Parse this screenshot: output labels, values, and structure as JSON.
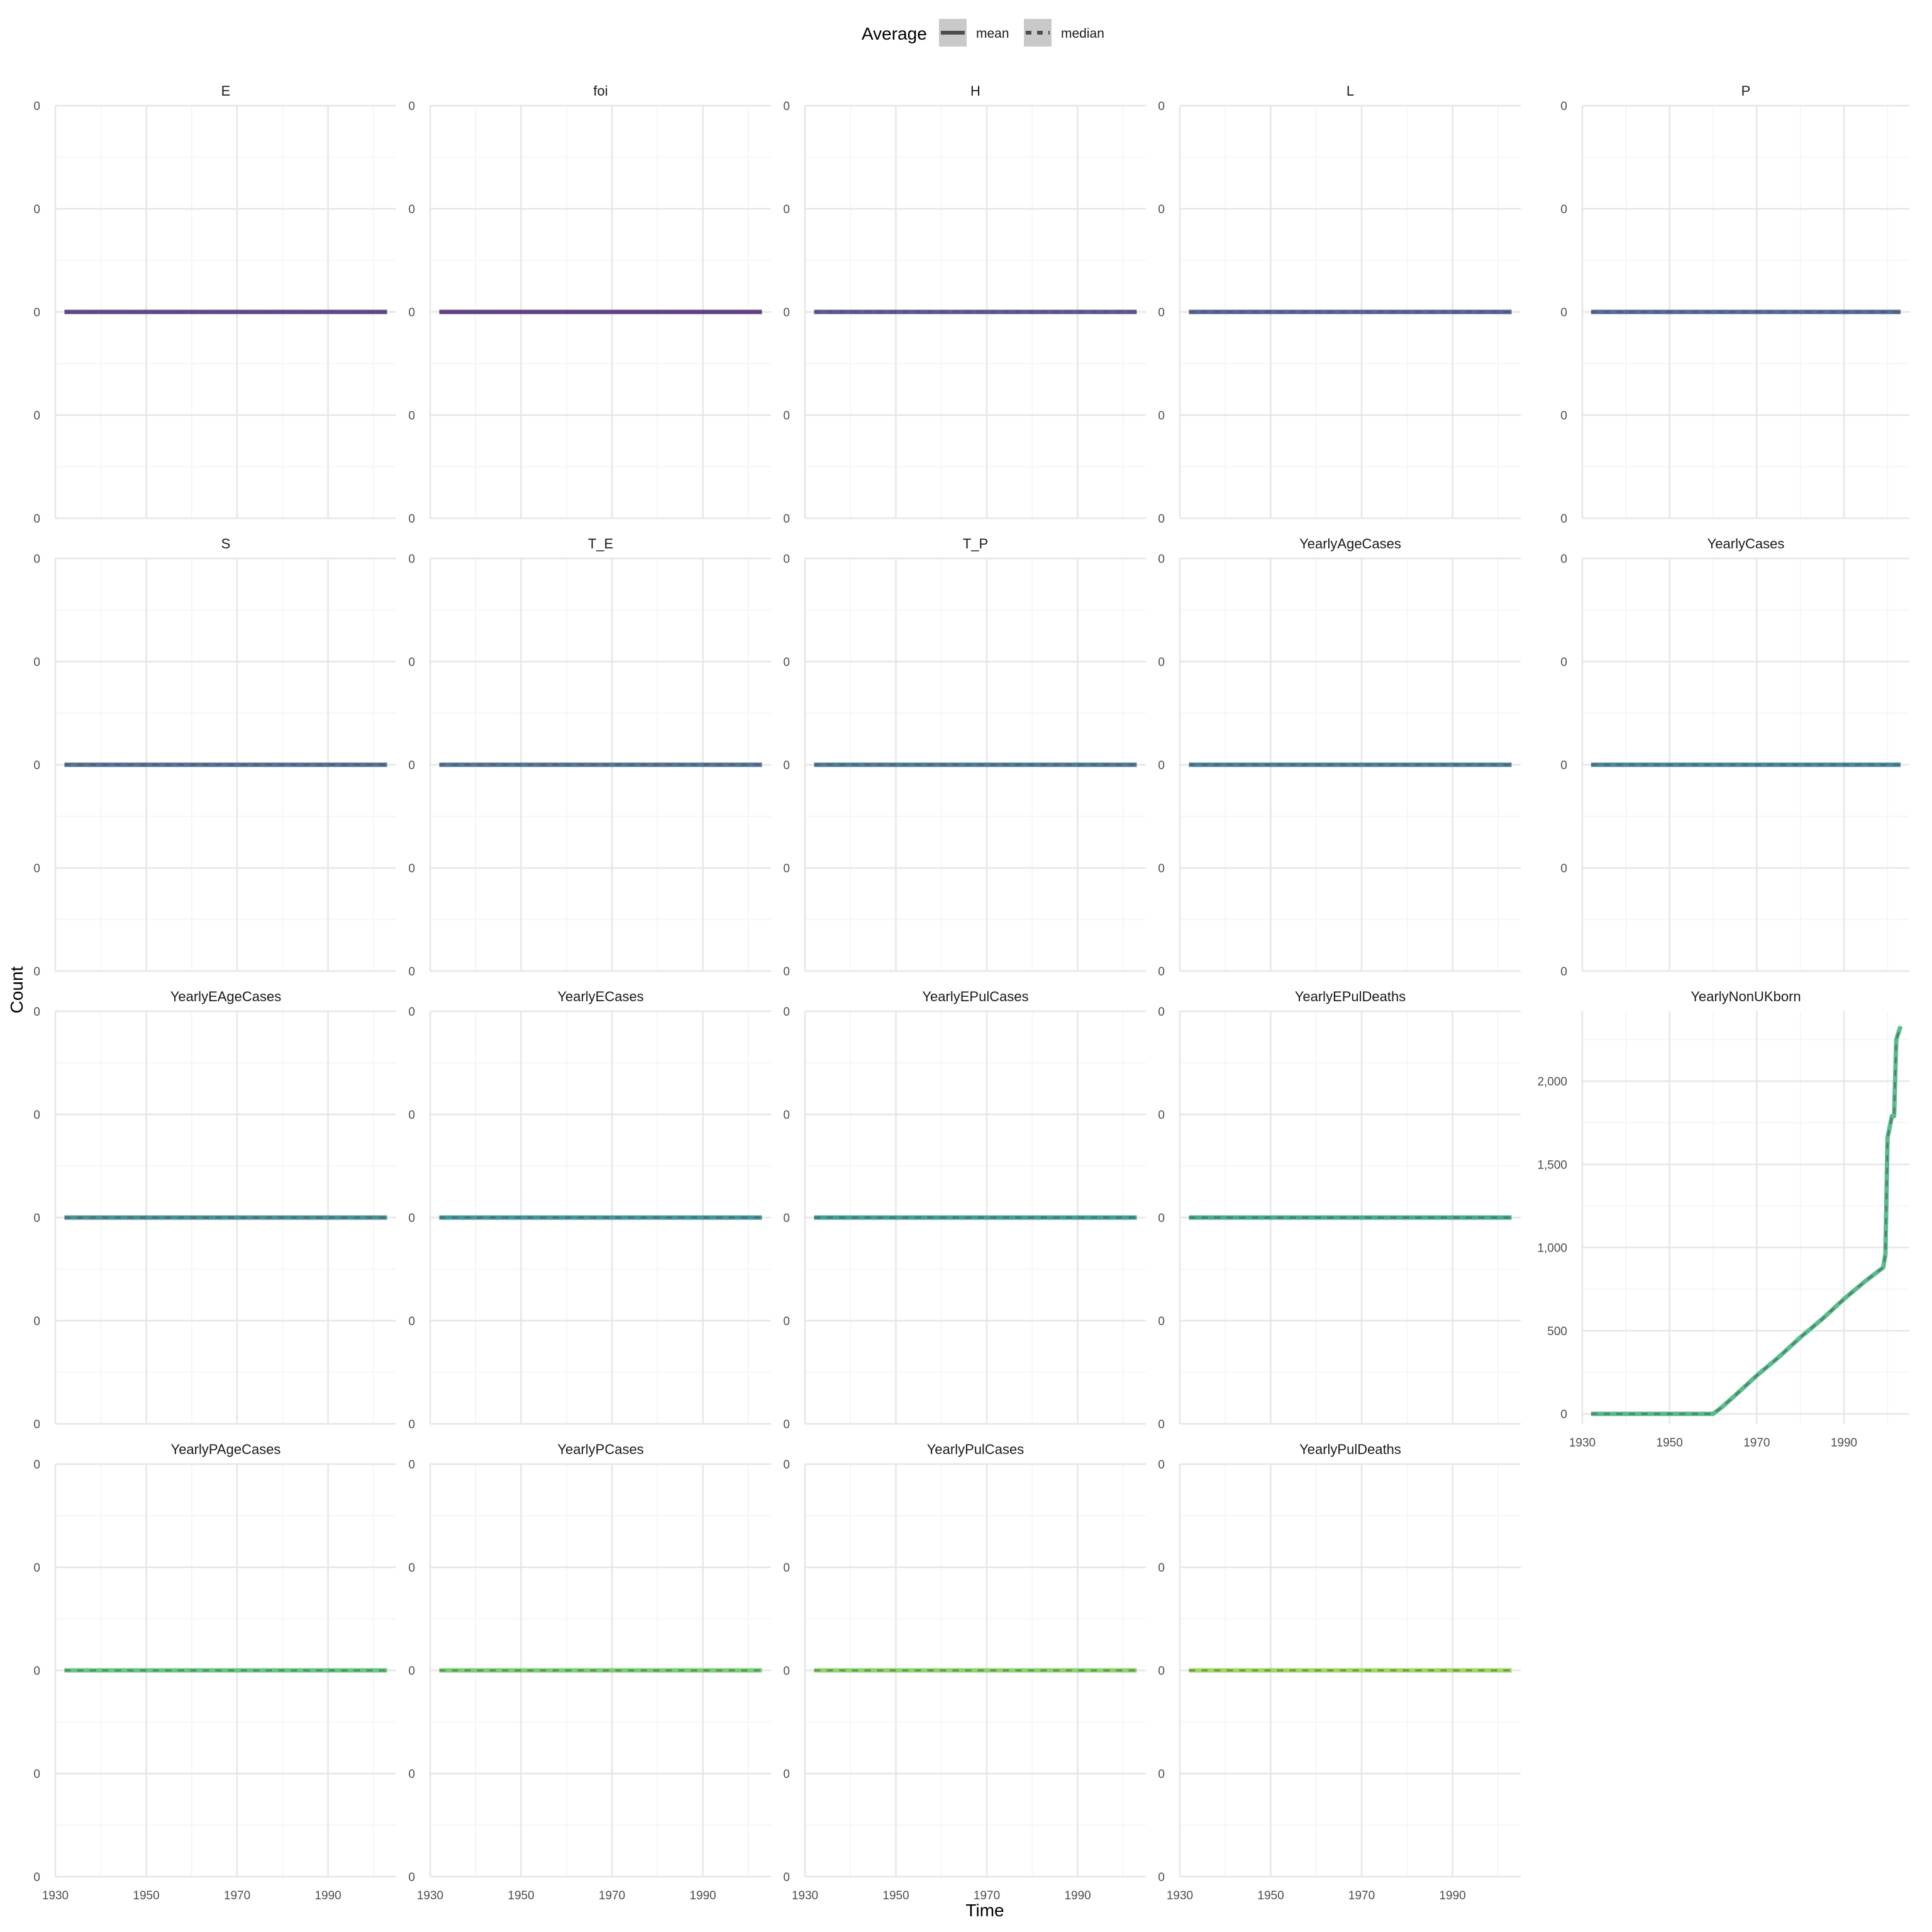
{
  "chart_data": {
    "type": "line",
    "xlabel": "Time",
    "ylabel": "Count",
    "legend": {
      "title": "Average",
      "position": "top",
      "entries": [
        {
          "label": "mean",
          "linetype": "solid"
        },
        {
          "label": "median",
          "linetype": "dashed"
        }
      ]
    },
    "grid": true,
    "facet_layout": {
      "cols": 5,
      "rows": 4,
      "x_axis_shared": true
    },
    "xlim": [
      1930,
      2005
    ],
    "x_ticks": [
      "1930",
      "1950",
      "1970",
      "1990"
    ],
    "x_tick_values": [
      1930,
      1950,
      1970,
      1990
    ],
    "zero_y_ticks": [
      "0",
      "0",
      "0",
      "0",
      "0"
    ],
    "colors": {
      "E": "#472d7b",
      "foi": "#482374",
      "H": "#433e85",
      "L": "#3e4a89",
      "P": "#3b528b",
      "S": "#3d5a8c",
      "T_E": "#39618c",
      "T_P": "#34688d",
      "YearlyAgeCases": "#2f6f8e",
      "YearlyCases": "#2c788e",
      "YearlyEAgeCases": "#298189",
      "YearlyECases": "#25888e",
      "YearlyEPulCases": "#23918c",
      "YearlyEPulDeaths": "#27a081",
      "YearlyNonUKborn": "#3bb17a",
      "YearlyPAgeCases": "#4cc26c",
      "YearlyPCases": "#64ca5e",
      "YearlyPulCases": "#78d152",
      "YearlyPulDeaths": "#8ed645"
    },
    "series": [
      {
        "panel": "E",
        "x": [
          1932,
          2003
        ],
        "mean": [
          0,
          0
        ],
        "median": [
          0,
          0
        ]
      },
      {
        "panel": "foi",
        "x": [
          1932,
          2003
        ],
        "mean": [
          0,
          0
        ],
        "median": [
          0,
          0
        ]
      },
      {
        "panel": "H",
        "x": [
          1932,
          2003
        ],
        "mean": [
          0,
          0
        ],
        "median": [
          0,
          0
        ]
      },
      {
        "panel": "L",
        "x": [
          1932,
          2003
        ],
        "mean": [
          0,
          0
        ],
        "median": [
          0,
          0
        ]
      },
      {
        "panel": "P",
        "x": [
          1932,
          2003
        ],
        "mean": [
          0,
          0
        ],
        "median": [
          0,
          0
        ]
      },
      {
        "panel": "S",
        "x": [
          1932,
          2003
        ],
        "mean": [
          0,
          0
        ],
        "median": [
          0,
          0
        ]
      },
      {
        "panel": "T_E",
        "x": [
          1932,
          2003
        ],
        "mean": [
          0,
          0
        ],
        "median": [
          0,
          0
        ]
      },
      {
        "panel": "T_P",
        "x": [
          1932,
          2003
        ],
        "mean": [
          0,
          0
        ],
        "median": [
          0,
          0
        ]
      },
      {
        "panel": "YearlyAgeCases",
        "x": [
          1932,
          2003
        ],
        "mean": [
          0,
          0
        ],
        "median": [
          0,
          0
        ]
      },
      {
        "panel": "YearlyCases",
        "x": [
          1932,
          2003
        ],
        "mean": [
          0,
          0
        ],
        "median": [
          0,
          0
        ]
      },
      {
        "panel": "YearlyEAgeCases",
        "x": [
          1932,
          2003
        ],
        "mean": [
          0,
          0
        ],
        "median": [
          0,
          0
        ]
      },
      {
        "panel": "YearlyECases",
        "x": [
          1932,
          2003
        ],
        "mean": [
          0,
          0
        ],
        "median": [
          0,
          0
        ]
      },
      {
        "panel": "YearlyEPulCases",
        "x": [
          1932,
          2003
        ],
        "mean": [
          0,
          0
        ],
        "median": [
          0,
          0
        ]
      },
      {
        "panel": "YearlyEPulDeaths",
        "x": [
          1932,
          2003
        ],
        "mean": [
          0,
          0
        ],
        "median": [
          0,
          0
        ]
      },
      {
        "panel": "YearlyNonUKborn",
        "ylim": [
          -60,
          2420
        ],
        "y_ticks": [
          0,
          500,
          1000,
          1500,
          2000
        ],
        "y_tick_labels": [
          "0",
          "500",
          "1,000",
          "1,500",
          "2,000"
        ],
        "x": [
          1932,
          1960,
          1962,
          1965,
          1970,
          1975,
          1980,
          1985,
          1990,
          1995,
          1999,
          1999.5,
          2000,
          2001,
          2001.5,
          2002,
          2003
        ],
        "mean": [
          0,
          0,
          40,
          110,
          230,
          340,
          460,
          570,
          690,
          800,
          880,
          960,
          1660,
          1790,
          1790,
          2250,
          2330
        ],
        "median": [
          0,
          0,
          40,
          110,
          230,
          340,
          460,
          570,
          690,
          800,
          880,
          960,
          1660,
          1790,
          1790,
          2250,
          2330
        ]
      },
      {
        "panel": "YearlyPAgeCases",
        "x": [
          1932,
          2003
        ],
        "mean": [
          0,
          0
        ],
        "median": [
          0,
          0
        ]
      },
      {
        "panel": "YearlyPCases",
        "x": [
          1932,
          2003
        ],
        "mean": [
          0,
          0
        ],
        "median": [
          0,
          0
        ]
      },
      {
        "panel": "YearlyPulCases",
        "x": [
          1932,
          2003
        ],
        "mean": [
          0,
          0
        ],
        "median": [
          0,
          0
        ]
      },
      {
        "panel": "YearlyPulDeaths",
        "x": [
          1932,
          2003
        ],
        "mean": [
          0,
          0
        ],
        "median": [
          0,
          0
        ]
      }
    ]
  }
}
